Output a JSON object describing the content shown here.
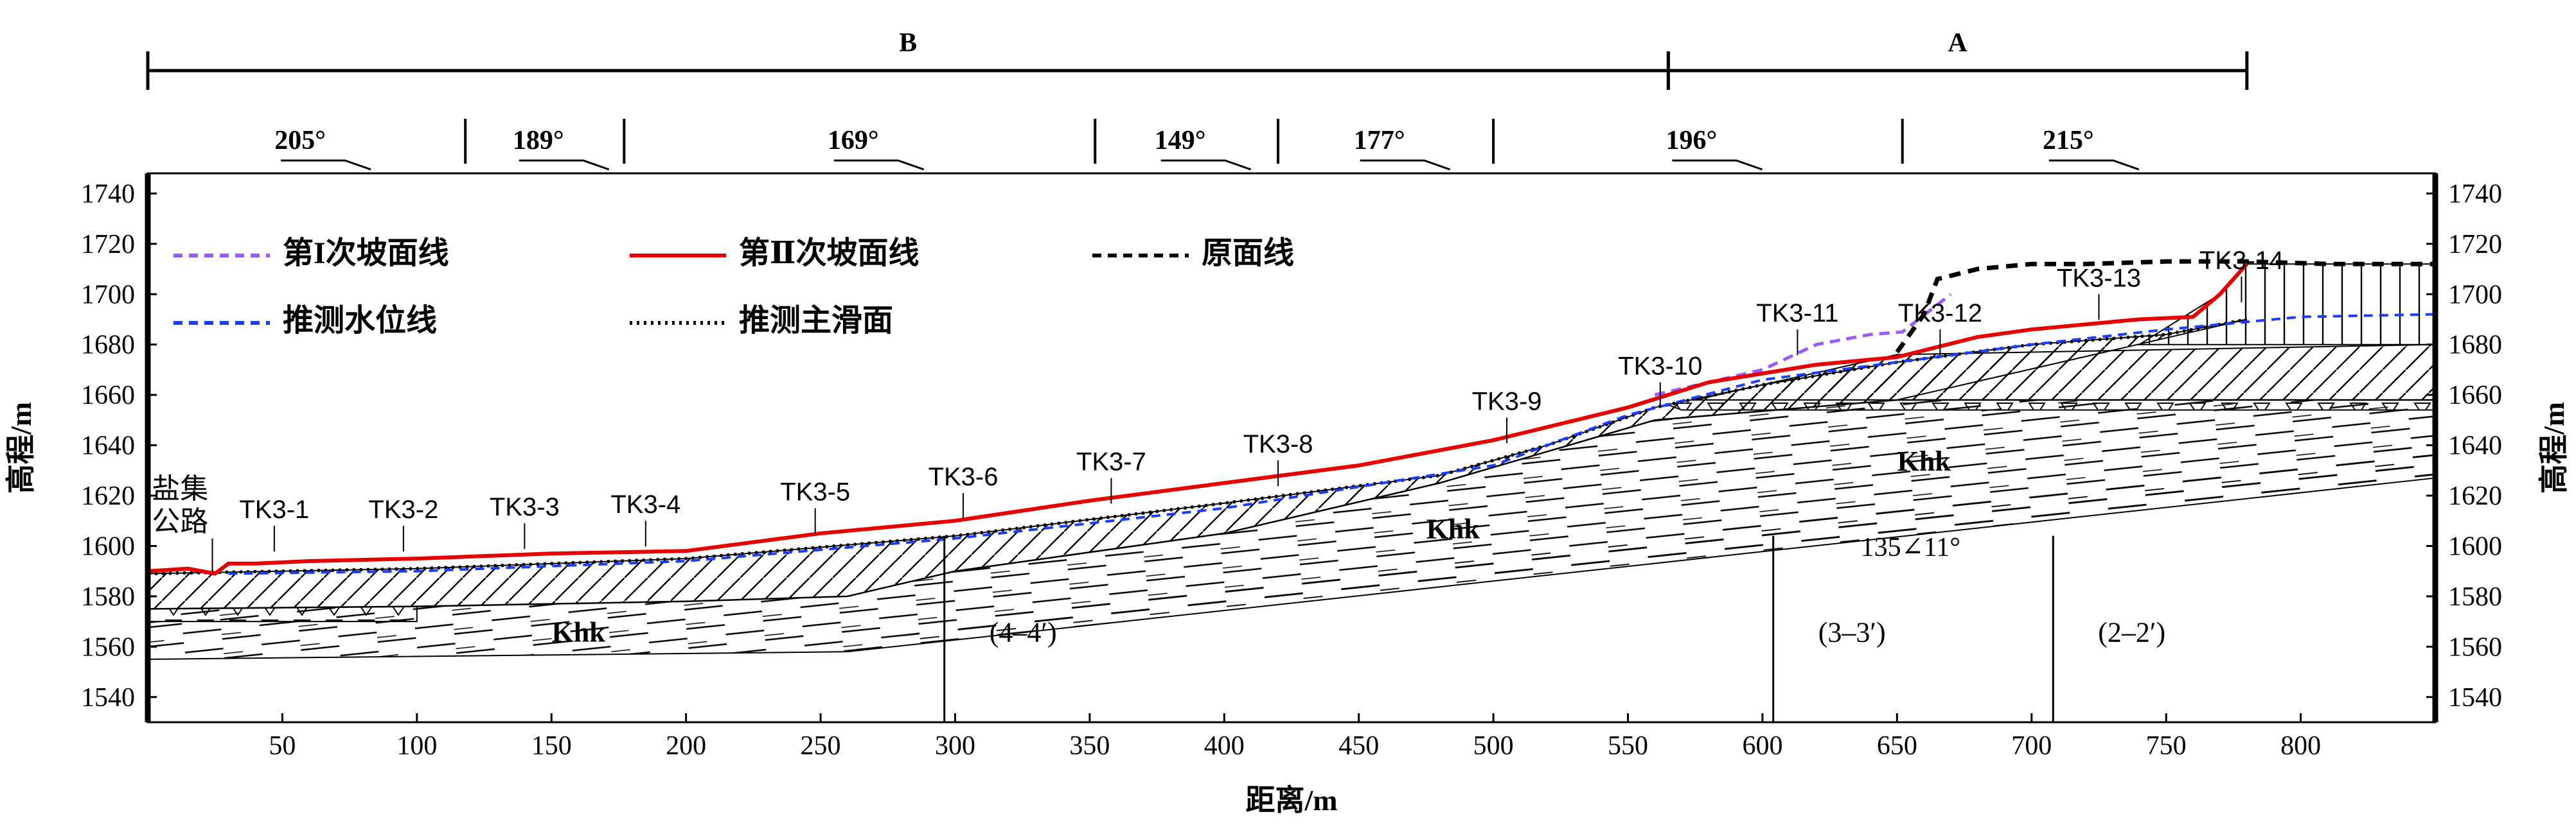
{
  "zones": [
    {
      "label": "B",
      "from": 0,
      "to": 565
    },
    {
      "label": "A",
      "from": 565,
      "to": 780
    }
  ],
  "orientation_segments": [
    {
      "label": "205°",
      "from": 0,
      "to": 118
    },
    {
      "label": "189°",
      "from": 118,
      "to": 177
    },
    {
      "label": "169°",
      "from": 177,
      "to": 352
    },
    {
      "label": "149°",
      "from": 352,
      "to": 420
    },
    {
      "label": "177°",
      "from": 420,
      "to": 500
    },
    {
      "label": "196°",
      "from": 500,
      "to": 652
    },
    {
      "label": "215°",
      "from": 652,
      "to": 780
    }
  ],
  "legend": [
    {
      "label": "第I次坡面线",
      "color": "#9b59ff",
      "style": "dashed"
    },
    {
      "label": "第Ⅱ次坡面线",
      "color": "#e60000",
      "style": "solid"
    },
    {
      "label": "原面线",
      "color": "#000000",
      "style": "dashed"
    },
    {
      "label": "推测水位线",
      "color": "#1a3cff",
      "style": "dashed"
    },
    {
      "label": "推测主滑面",
      "color": "#000000",
      "style": "dotted"
    }
  ],
  "axes": {
    "x_label": "距离/m",
    "y_label_left": "高程/m",
    "y_label_right": "高程/m",
    "x_range": [
      0,
      850
    ],
    "y_range": [
      1530,
      1748
    ],
    "x_ticks": [
      50,
      100,
      150,
      200,
      250,
      300,
      350,
      400,
      450,
      500,
      550,
      600,
      650,
      700,
      750,
      800
    ],
    "y_ticks": [
      1540,
      1560,
      1580,
      1600,
      1620,
      1640,
      1660,
      1680,
      1700,
      1720,
      1740
    ]
  },
  "boreholes": [
    {
      "label": "TK3-1",
      "x": 47,
      "y": 1608
    },
    {
      "label": "TK3-2",
      "x": 95,
      "y": 1608
    },
    {
      "label": "TK3-3",
      "x": 140,
      "y": 1609
    },
    {
      "label": "TK3-4",
      "x": 185,
      "y": 1610
    },
    {
      "label": "TK3-5",
      "x": 248,
      "y": 1615
    },
    {
      "label": "TK3-6",
      "x": 303,
      "y": 1621
    },
    {
      "label": "TK3-7",
      "x": 358,
      "y": 1627
    },
    {
      "label": "TK3-8",
      "x": 420,
      "y": 1634
    },
    {
      "label": "TK3-9",
      "x": 505,
      "y": 1651
    },
    {
      "label": "TK3-10",
      "x": 562,
      "y": 1665
    },
    {
      "label": "TK3-11",
      "x": 613,
      "y": 1686
    },
    {
      "label": "TK3-12",
      "x": 666,
      "y": 1686
    },
    {
      "label": "TK3-13",
      "x": 725,
      "y": 1700
    },
    {
      "label": "TK3-14",
      "x": 778,
      "y": 1707
    }
  ],
  "road_label": [
    "盐集",
    "公路"
  ],
  "strata_labels": [
    {
      "label": "Khk",
      "x": 160,
      "y": 1562
    },
    {
      "label": "Khk",
      "x": 485,
      "y": 1603
    },
    {
      "label": "Khk",
      "x": 660,
      "y": 1630
    }
  ],
  "section_markers": [
    {
      "label": "(4–4′)",
      "x": 296
    },
    {
      "label": "(3–3′)",
      "x": 604
    },
    {
      "label": "(2–2′)",
      "x": 708
    }
  ],
  "attitude": {
    "label": "135∠11°",
    "x": 655,
    "y": 1596
  },
  "profiles": {
    "original": {
      "x": [
        650,
        660,
        665,
        680,
        700,
        720,
        750,
        780,
        810,
        850
      ],
      "y": [
        1677,
        1692,
        1706,
        1710,
        1712,
        1712,
        1713,
        1713,
        1712,
        1712
      ]
    },
    "first": {
      "x": [
        560,
        580,
        600,
        620,
        640,
        652,
        670
      ],
      "y": [
        1660,
        1665,
        1670,
        1680,
        1684,
        1685,
        1700
      ]
    },
    "second": {
      "x": [
        0,
        15,
        25,
        30,
        40,
        60,
        100,
        150,
        200,
        250,
        300,
        350,
        400,
        450,
        500,
        550,
        580,
        620,
        650,
        680,
        700,
        720,
        740,
        760,
        770,
        780
      ],
      "y": [
        1590,
        1591,
        1589,
        1593,
        1593,
        1594,
        1595,
        1597,
        1598,
        1605,
        1610,
        1618,
        1625,
        1632,
        1642,
        1655,
        1665,
        1672,
        1675,
        1683,
        1686,
        1688,
        1690,
        1691,
        1700,
        1712
      ]
    },
    "water": {
      "x": [
        30,
        100,
        200,
        300,
        400,
        500,
        550,
        600,
        650,
        700,
        750,
        800,
        850
      ],
      "y": [
        1589,
        1590,
        1594,
        1603,
        1615,
        1632,
        1652,
        1666,
        1673,
        1680,
        1686,
        1691,
        1692
      ]
    },
    "slip": {
      "x": [
        0,
        100,
        200,
        300,
        400,
        480,
        520,
        560,
        600,
        650,
        700,
        750,
        780
      ],
      "y": [
        1589,
        1591,
        1595,
        1604,
        1617,
        1628,
        1640,
        1655,
        1664,
        1673,
        1680,
        1684,
        1690
      ]
    }
  }
}
